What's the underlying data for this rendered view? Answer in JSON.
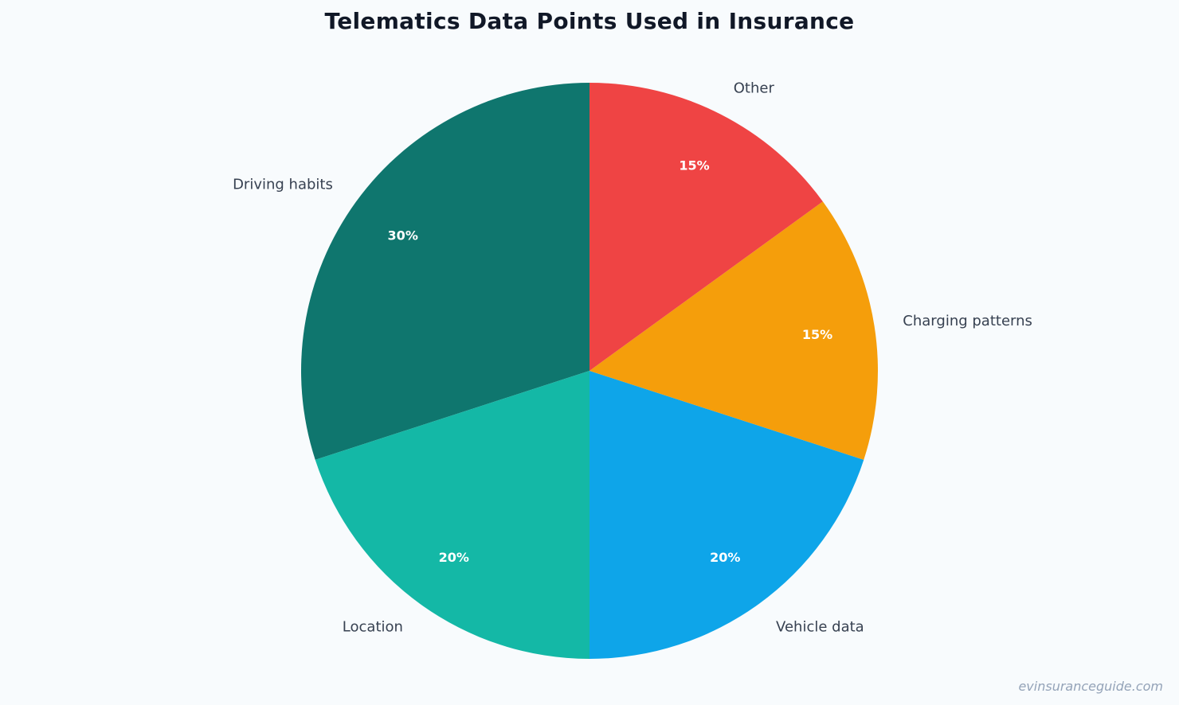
{
  "chart_data": {
    "type": "pie",
    "title": "Telematics Data Points Used in Insurance",
    "start_angle": "12 o'clock",
    "direction": "counterclockwise",
    "slices": [
      {
        "label": "Driving habits",
        "value": 30,
        "display": "30%",
        "color": "#0f766e"
      },
      {
        "label": "Location",
        "value": 20,
        "display": "20%",
        "color": "#14b8a6"
      },
      {
        "label": "Vehicle data",
        "value": 20,
        "display": "20%",
        "color": "#0ea5e9"
      },
      {
        "label": "Charging patterns",
        "value": 15,
        "display": "15%",
        "color": "#f59e0b"
      },
      {
        "label": "Other",
        "value": 15,
        "display": "15%",
        "color": "#ef4444"
      }
    ]
  },
  "watermark": "evinsuranceguide.com"
}
